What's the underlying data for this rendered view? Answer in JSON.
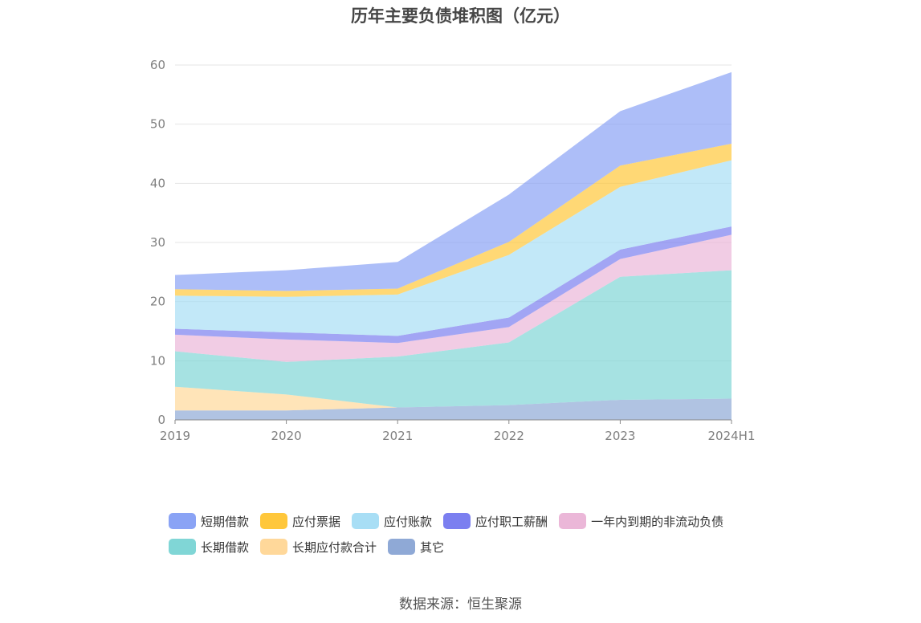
{
  "source_text": "数据来源：恒生聚源",
  "chart_data": {
    "type": "area",
    "stacked": true,
    "title": "历年主要负债堆积图（亿元）",
    "xlabel": "",
    "ylabel": "",
    "x": [
      "2019",
      "2020",
      "2021",
      "2022",
      "2023",
      "2024H1"
    ],
    "ylim": [
      0,
      60
    ],
    "yticks": [
      0,
      10,
      20,
      30,
      40,
      50,
      60
    ],
    "grid": true,
    "legend_position": "bottom",
    "series": [
      {
        "name": "其它",
        "color": "#8fa9d6",
        "values": [
          1.6,
          1.6,
          2.1,
          2.5,
          3.4,
          3.6
        ]
      },
      {
        "name": "长期应付款合计",
        "color": "#ffd89a",
        "values": [
          4.0,
          2.7,
          0.0,
          0.0,
          0.0,
          0.0
        ]
      },
      {
        "name": "长期借款",
        "color": "#80d6d6",
        "values": [
          6.0,
          5.5,
          8.6,
          10.6,
          20.8,
          21.7
        ]
      },
      {
        "name": "一年内到期的非流动负债",
        "color": "#ebb7d8",
        "values": [
          2.8,
          3.8,
          2.3,
          2.6,
          3.0,
          6.0
        ]
      },
      {
        "name": "应付职工薪酬",
        "color": "#7b7ff0",
        "values": [
          1.0,
          1.2,
          1.2,
          1.6,
          1.6,
          1.4
        ]
      },
      {
        "name": "应付账款",
        "color": "#a8def5",
        "values": [
          5.6,
          6.0,
          7.0,
          10.6,
          10.6,
          11.2
        ]
      },
      {
        "name": "应付票据",
        "color": "#ffc73b",
        "values": [
          1.1,
          1.0,
          1.0,
          2.2,
          3.6,
          2.8
        ]
      },
      {
        "name": "短期借款",
        "color": "#8aa3f5",
        "values": [
          2.4,
          3.5,
          4.5,
          8.0,
          9.2,
          12.1
        ]
      }
    ],
    "legend_order": [
      "短期借款",
      "应付票据",
      "应付账款",
      "应付职工薪酬",
      "一年内到期的非流动负债",
      "长期借款",
      "长期应付款合计",
      "其它"
    ]
  }
}
